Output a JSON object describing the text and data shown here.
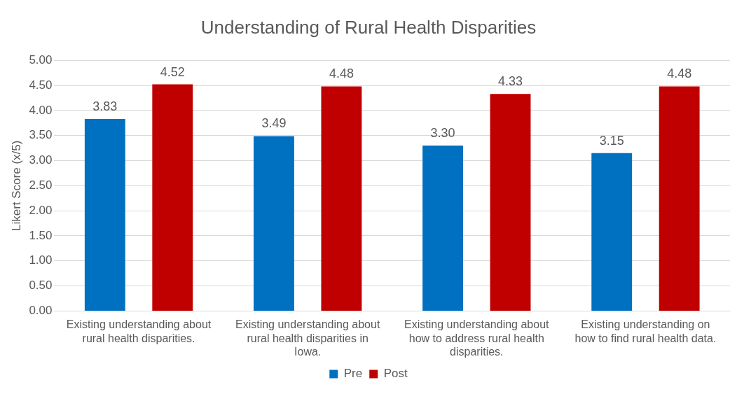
{
  "chart_data": {
    "type": "bar",
    "title": "Understanding of Rural Health Disparities",
    "ylabel": "Likert Score (x/5)",
    "categories": [
      "Existing understanding about rural health disparities.",
      "Existing understanding about rural health disparities in Iowa.",
      "Existing understanding about how to address rural health disparities.",
      "Existing understanding on how to find rural health data."
    ],
    "series": [
      {
        "name": "Pre",
        "color": "#0070c0",
        "values": [
          3.83,
          3.49,
          3.3,
          3.15
        ],
        "value_labels": [
          "3.83",
          "3.49",
          "3.30",
          "3.15"
        ]
      },
      {
        "name": "Post",
        "color": "#c00000",
        "values": [
          4.52,
          4.48,
          4.33,
          4.48
        ],
        "value_labels": [
          "4.52",
          "4.48",
          "4.33",
          "4.48"
        ]
      }
    ],
    "ylim": [
      0,
      5
    ],
    "yticks": [
      {
        "value": 0,
        "label": "0.00"
      },
      {
        "value": 0.5,
        "label": "0.50"
      },
      {
        "value": 1,
        "label": "1.00"
      },
      {
        "value": 1.5,
        "label": "1.50"
      },
      {
        "value": 2,
        "label": "2.00"
      },
      {
        "value": 2.5,
        "label": "2.50"
      },
      {
        "value": 3,
        "label": "3.00"
      },
      {
        "value": 3.5,
        "label": "3.50"
      },
      {
        "value": 4,
        "label": "4.00"
      },
      {
        "value": 4.5,
        "label": "4.50"
      },
      {
        "value": 5,
        "label": "5.00"
      }
    ],
    "grid": "y",
    "legend": "bottom"
  }
}
